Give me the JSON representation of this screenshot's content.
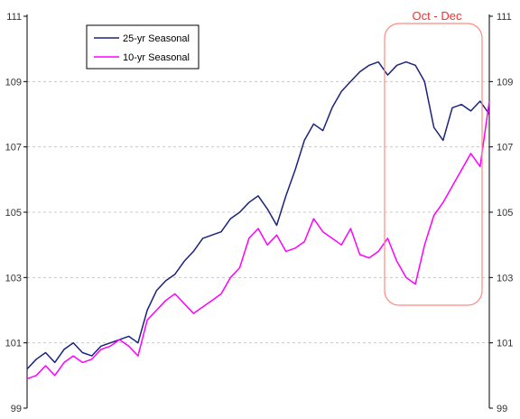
{
  "chart_data": {
    "type": "line",
    "title": "",
    "xlabel": "",
    "ylabel": "",
    "ylim": [
      99,
      111
    ],
    "y_ticks": [
      "99",
      "101",
      "103",
      "105",
      "107",
      "109",
      "111"
    ],
    "grid": true,
    "legend_position": "top-left",
    "annotation": {
      "text": "Oct - Dec",
      "color": "#ff3333"
    },
    "x": [
      1,
      6,
      11,
      16,
      21,
      26,
      31,
      36,
      41,
      46,
      51,
      56,
      61,
      66,
      71,
      76,
      81,
      86,
      91,
      96,
      101,
      106,
      111,
      116,
      121,
      126,
      131,
      136,
      141,
      146,
      151,
      156,
      161,
      166,
      171,
      176,
      181,
      186,
      191,
      196,
      201,
      206,
      211,
      216,
      221,
      226,
      231,
      236,
      241,
      246,
      251
    ],
    "series": [
      {
        "name": "25-yr Seasonal",
        "color": "#1a237e",
        "values": [
          100.2,
          100.5,
          100.7,
          100.4,
          100.8,
          101.0,
          100.7,
          100.6,
          100.9,
          101.0,
          101.1,
          101.2,
          101.0,
          102.0,
          102.6,
          102.9,
          103.1,
          103.5,
          103.8,
          104.2,
          104.3,
          104.4,
          104.8,
          105.0,
          105.3,
          105.5,
          105.1,
          104.6,
          105.5,
          106.3,
          107.2,
          107.7,
          107.5,
          108.2,
          108.7,
          109.0,
          109.3,
          109.5,
          109.6,
          109.2,
          109.5,
          109.6,
          109.5,
          109.0,
          107.6,
          107.2,
          108.2,
          108.3,
          108.1,
          108.4,
          108.0
        ]
      },
      {
        "name": "10-yr Seasonal",
        "color": "#ff00ff",
        "values": [
          99.9,
          100.0,
          100.3,
          100.0,
          100.4,
          100.6,
          100.4,
          100.5,
          100.8,
          100.9,
          101.1,
          100.9,
          100.6,
          101.7,
          102.0,
          102.3,
          102.5,
          102.2,
          101.9,
          102.1,
          102.3,
          102.5,
          103.0,
          103.3,
          104.2,
          104.5,
          104.0,
          104.3,
          103.8,
          103.9,
          104.1,
          104.8,
          104.4,
          104.2,
          104.0,
          104.5,
          103.7,
          103.6,
          103.8,
          104.2,
          103.5,
          103.0,
          102.8,
          104.0,
          104.9,
          105.3,
          105.8,
          106.3,
          106.8,
          106.4,
          108.4
        ]
      }
    ]
  }
}
